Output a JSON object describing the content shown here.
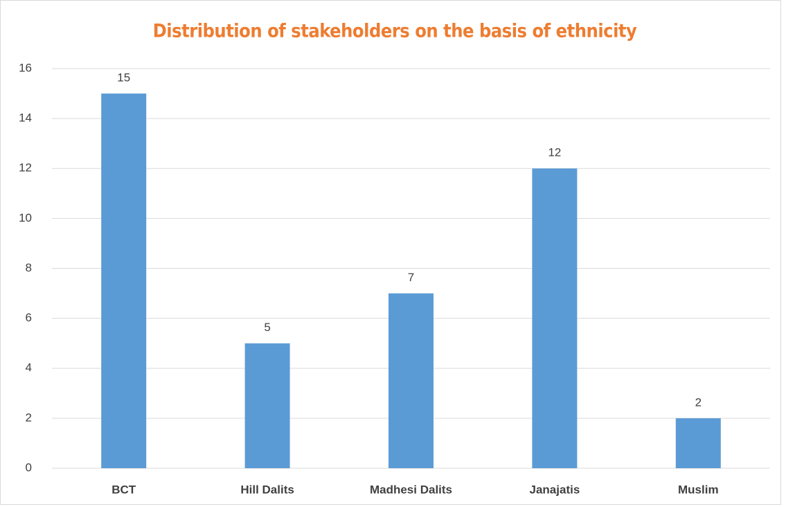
{
  "chart_data": {
    "type": "bar",
    "title": "Distribution of stakeholders on the basis of ethnicity",
    "categories": [
      "BCT",
      "Hill Dalits",
      "Madhesi Dalits",
      "Janajatis",
      "Muslim"
    ],
    "values": [
      15,
      5,
      7,
      12,
      2
    ],
    "color": "#5b9bd5",
    "ylim": [
      0,
      16
    ],
    "yticks": [
      0,
      2,
      4,
      6,
      8,
      10,
      12,
      14,
      16
    ],
    "grid": true
  }
}
